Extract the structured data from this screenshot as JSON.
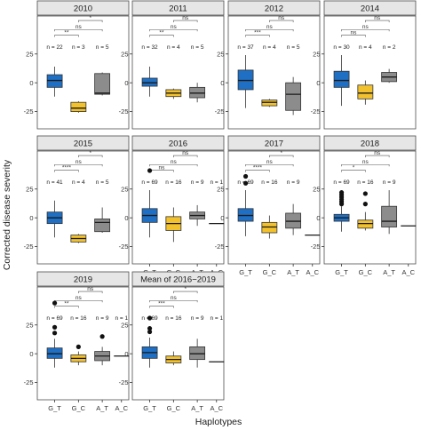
{
  "chart_data": {
    "type": "boxplot",
    "xlabel": "Haplotypes",
    "ylabel": "Corrected disease severity",
    "categories": [
      "G_T",
      "G_C",
      "A_T",
      "A_C"
    ],
    "y_ticks": [
      -25,
      0,
      25
    ],
    "ylim": [
      -40,
      58
    ],
    "category_colors": {
      "G_T": "#1f6fc4",
      "G_C": "#f2c12e",
      "A_T": "#8c8c8c",
      "A_C": "#8c8c8c"
    },
    "panels": [
      {
        "title": "2010",
        "counts": {
          "G_T": "n = 22",
          "G_C": "n = 3",
          "A_T": "n = 5"
        },
        "boxes": [
          {
            "group": "G_T",
            "whislo": -12,
            "q1": -4,
            "med": 2,
            "q3": 7,
            "whishi": 14,
            "outliers": []
          },
          {
            "group": "G_C",
            "whislo": -26,
            "q1": -25,
            "med": -22,
            "q3": -17,
            "whishi": -16,
            "outliers": []
          },
          {
            "group": "A_T",
            "whislo": -11,
            "q1": -10,
            "med": -9,
            "q3": 8,
            "whishi": 9,
            "outliers": []
          }
        ],
        "comparisons": [
          {
            "from": "G_T",
            "to": "G_C",
            "label": "**"
          },
          {
            "from": "G_T",
            "to": "A_T",
            "label": "ns"
          },
          {
            "from": "G_C",
            "to": "A_T",
            "label": "*"
          }
        ]
      },
      {
        "title": "2011",
        "counts": {
          "G_T": "n = 32",
          "G_C": "n = 4",
          "A_T": "n = 5"
        },
        "boxes": [
          {
            "group": "G_T",
            "whislo": -12,
            "q1": -3,
            "med": 0,
            "q3": 4,
            "whishi": 14,
            "outliers": []
          },
          {
            "group": "G_C",
            "whislo": -14,
            "q1": -12,
            "med": -9,
            "q3": -6,
            "whishi": -5,
            "outliers": []
          },
          {
            "group": "A_T",
            "whislo": -17,
            "q1": -13,
            "med": -9,
            "q3": -4,
            "whishi": 0,
            "outliers": []
          }
        ],
        "comparisons": [
          {
            "from": "G_T",
            "to": "G_C",
            "label": "**"
          },
          {
            "from": "G_T",
            "to": "A_T",
            "label": "ns"
          },
          {
            "from": "G_C",
            "to": "A_T",
            "label": "ns"
          }
        ]
      },
      {
        "title": "2012",
        "counts": {
          "G_T": "n = 37",
          "G_C": "n = 4",
          "A_T": "n = 5"
        },
        "boxes": [
          {
            "group": "G_T",
            "whislo": -22,
            "q1": -6,
            "med": 2,
            "q3": 11,
            "whishi": 24,
            "outliers": []
          },
          {
            "group": "G_C",
            "whislo": -21,
            "q1": -20,
            "med": -17,
            "q3": -15,
            "whishi": -14,
            "outliers": []
          },
          {
            "group": "A_T",
            "whislo": -28,
            "q1": -24,
            "med": -10,
            "q3": 0,
            "whishi": 5,
            "outliers": []
          }
        ],
        "comparisons": [
          {
            "from": "G_T",
            "to": "G_C",
            "label": "***"
          },
          {
            "from": "G_T",
            "to": "A_T",
            "label": "ns"
          },
          {
            "from": "G_C",
            "to": "A_T",
            "label": "ns"
          }
        ]
      },
      {
        "title": "2014",
        "counts": {
          "G_T": "n = 30",
          "G_C": "n = 4",
          "A_T": "n = 2"
        },
        "boxes": [
          {
            "group": "G_T",
            "whislo": -20,
            "q1": -4,
            "med": 2,
            "q3": 10,
            "whishi": 24,
            "outliers": []
          },
          {
            "group": "G_C",
            "whislo": -19,
            "q1": -14,
            "med": -9,
            "q3": -2,
            "whishi": 2,
            "outliers": []
          },
          {
            "group": "A_T",
            "whislo": 0,
            "q1": 1,
            "med": 5,
            "q3": 9,
            "whishi": 12,
            "outliers": []
          }
        ],
        "comparisons": [
          {
            "from": "G_T",
            "to": "G_C",
            "label": "ns"
          },
          {
            "from": "G_T",
            "to": "A_T",
            "label": "ns"
          },
          {
            "from": "G_C",
            "to": "A_T",
            "label": "ns"
          }
        ]
      },
      {
        "title": "2015",
        "counts": {
          "G_T": "n = 41",
          "G_C": "n = 4",
          "A_T": "n = 5"
        },
        "boxes": [
          {
            "group": "G_T",
            "whislo": -17,
            "q1": -5,
            "med": 0,
            "q3": 5,
            "whishi": 15,
            "outliers": []
          },
          {
            "group": "G_C",
            "whislo": -22,
            "q1": -21,
            "med": -18,
            "q3": -15,
            "whishi": -14,
            "outliers": []
          },
          {
            "group": "A_T",
            "whislo": -13,
            "q1": -12,
            "med": -4,
            "q3": -1,
            "whishi": 9,
            "outliers": []
          }
        ],
        "comparisons": [
          {
            "from": "G_T",
            "to": "G_C",
            "label": "****"
          },
          {
            "from": "G_T",
            "to": "A_T",
            "label": "ns"
          },
          {
            "from": "G_C",
            "to": "A_T",
            "label": "*"
          }
        ]
      },
      {
        "title": "2016",
        "counts": {
          "G_T": "n = 69",
          "G_C": "n = 16",
          "A_T": "n = 9",
          "A_C": "n = 1"
        },
        "boxes": [
          {
            "group": "G_T",
            "whislo": -17,
            "q1": -4,
            "med": 2,
            "q3": 8,
            "whishi": 24,
            "outliers": [
              41
            ]
          },
          {
            "group": "G_C",
            "whislo": -21,
            "q1": -11,
            "med": -5,
            "q3": 1,
            "whishi": 9,
            "outliers": []
          },
          {
            "group": "A_T",
            "whislo": -7,
            "q1": -1,
            "med": 2,
            "q3": 5,
            "whishi": 11,
            "outliers": []
          },
          {
            "group": "A_C",
            "whislo": -5,
            "q1": -5,
            "med": -5,
            "q3": -5,
            "whishi": -5,
            "outliers": []
          }
        ],
        "comparisons": [
          {
            "from": "G_T",
            "to": "G_C",
            "label": "ns"
          },
          {
            "from": "G_T",
            "to": "A_T",
            "label": "ns"
          },
          {
            "from": "G_C",
            "to": "A_T",
            "label": "ns"
          }
        ]
      },
      {
        "title": "2017",
        "counts": {
          "G_T": "n = 69",
          "G_C": "n = 16",
          "A_T": "n = 9"
        },
        "boxes": [
          {
            "group": "G_T",
            "whislo": -16,
            "q1": -3,
            "med": 2,
            "q3": 8,
            "whishi": 24,
            "outliers": [
              30,
              36
            ]
          },
          {
            "group": "G_C",
            "whislo": -18,
            "q1": -13,
            "med": -8,
            "q3": -4,
            "whishi": 2,
            "outliers": []
          },
          {
            "group": "A_T",
            "whislo": -15,
            "q1": -9,
            "med": -3,
            "q3": 4,
            "whishi": 12,
            "outliers": []
          },
          {
            "group": "A_C",
            "whislo": -15,
            "q1": -15,
            "med": -15,
            "q3": -15,
            "whishi": -15,
            "outliers": []
          }
        ],
        "comparisons": [
          {
            "from": "G_T",
            "to": "G_C",
            "label": "****"
          },
          {
            "from": "G_T",
            "to": "A_T",
            "label": "ns"
          },
          {
            "from": "G_C",
            "to": "A_T",
            "label": "*"
          }
        ]
      },
      {
        "title": "2018",
        "counts": {
          "G_T": "n = 69",
          "G_C": "n = 16",
          "A_T": "n = 9"
        },
        "boxes": [
          {
            "group": "G_T",
            "whislo": -12,
            "q1": -3,
            "med": 0,
            "q3": 3,
            "whishi": 10,
            "outliers": [
              12,
              14,
              16,
              18,
              20,
              22
            ]
          },
          {
            "group": "G_C",
            "whislo": -11,
            "q1": -9,
            "med": -5,
            "q3": -2,
            "whishi": 5,
            "outliers": [
              12,
              21
            ]
          },
          {
            "group": "A_T",
            "whislo": -14,
            "q1": -8,
            "med": -3,
            "q3": 10,
            "whishi": 24,
            "outliers": []
          },
          {
            "group": "A_C",
            "whislo": -7,
            "q1": -7,
            "med": -7,
            "q3": -7,
            "whishi": -7,
            "outliers": []
          }
        ],
        "comparisons": [
          {
            "from": "G_T",
            "to": "G_C",
            "label": "*"
          },
          {
            "from": "G_T",
            "to": "A_T",
            "label": "ns"
          },
          {
            "from": "G_C",
            "to": "A_T",
            "label": "ns"
          }
        ]
      },
      {
        "title": "2019",
        "counts": {
          "G_T": "n = 69",
          "G_C": "n = 16",
          "A_T": "n = 9",
          "A_C": "n = 1"
        },
        "boxes": [
          {
            "group": "G_T",
            "whislo": -12,
            "q1": -4,
            "med": 0,
            "q3": 5,
            "whishi": 13,
            "outliers": [
              18,
              23,
              44
            ]
          },
          {
            "group": "G_C",
            "whislo": -10,
            "q1": -7,
            "med": -4,
            "q3": -1,
            "whishi": 2,
            "outliers": [
              6
            ]
          },
          {
            "group": "A_T",
            "whislo": -10,
            "q1": -6,
            "med": -2,
            "q3": 2,
            "whishi": 6,
            "outliers": [
              15
            ]
          },
          {
            "group": "A_C",
            "whislo": -2,
            "q1": -2,
            "med": -2,
            "q3": -2,
            "whishi": -2,
            "outliers": []
          }
        ],
        "comparisons": [
          {
            "from": "G_T",
            "to": "G_C",
            "label": "**"
          },
          {
            "from": "G_T",
            "to": "A_T",
            "label": "ns"
          },
          {
            "from": "G_C",
            "to": "A_T",
            "label": "ns"
          }
        ]
      },
      {
        "title": "Mean of 2016−2019",
        "counts": {
          "G_T": "n = 69",
          "G_C": "n = 16",
          "A_T": "n = 9",
          "A_C": "n = 1"
        },
        "boxes": [
          {
            "group": "G_T",
            "whislo": -12,
            "q1": -4,
            "med": 1,
            "q3": 6,
            "whishi": 14,
            "outliers": [
              19,
              22,
              31
            ]
          },
          {
            "group": "G_C",
            "whislo": -10,
            "q1": -8,
            "med": -5,
            "q3": -2,
            "whishi": 2,
            "outliers": []
          },
          {
            "group": "A_T",
            "whislo": -12,
            "q1": -5,
            "med": 0,
            "q3": 6,
            "whishi": 13,
            "outliers": []
          },
          {
            "group": "A_C",
            "whislo": -7,
            "q1": -7,
            "med": -7,
            "q3": -7,
            "whishi": -7,
            "outliers": []
          }
        ],
        "comparisons": [
          {
            "from": "G_T",
            "to": "G_C",
            "label": "***"
          },
          {
            "from": "G_T",
            "to": "A_T",
            "label": "ns"
          },
          {
            "from": "G_C",
            "to": "A_T",
            "label": "*"
          }
        ]
      }
    ]
  }
}
